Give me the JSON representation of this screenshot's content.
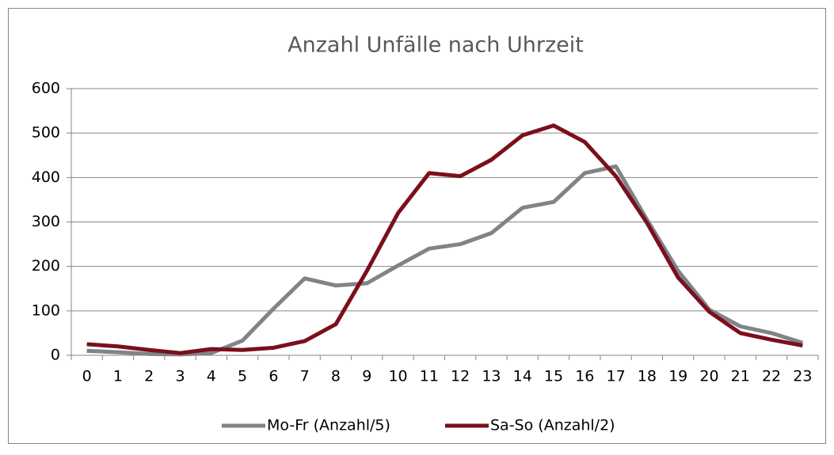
{
  "chart_data": {
    "type": "line",
    "title": "Anzahl Unfälle nach Uhrzeit",
    "categories": [
      "0",
      "1",
      "2",
      "3",
      "4",
      "5",
      "6",
      "7",
      "8",
      "9",
      "10",
      "11",
      "12",
      "13",
      "14",
      "15",
      "16",
      "17",
      "18",
      "19",
      "20",
      "21",
      "22",
      "23"
    ],
    "series": [
      {
        "name": "Mo-Fr (Anzahl/5)",
        "color": "#7f8489",
        "values": [
          10,
          7,
          3,
          2,
          5,
          33,
          105,
          173,
          157,
          162,
          202,
          240,
          250,
          275,
          332,
          345,
          410,
          425,
          305,
          190,
          103,
          65,
          50,
          28
        ]
      },
      {
        "name": "Sa-So (Anzahl/2)",
        "color": "#7b0f1c",
        "values": [
          25,
          20,
          12,
          5,
          14,
          12,
          17,
          32,
          70,
          190,
          320,
          410,
          403,
          440,
          495,
          517,
          480,
          403,
          298,
          175,
          98,
          50,
          35,
          22
        ]
      }
    ],
    "ylim": [
      0,
      600
    ],
    "yticks": [
      0,
      100,
      200,
      300,
      400,
      500,
      600
    ],
    "grid": true,
    "legend": "bottom"
  }
}
